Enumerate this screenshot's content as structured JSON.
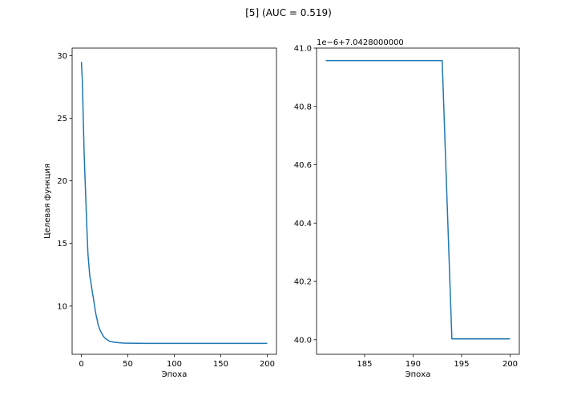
{
  "figure_title": "[5] (AUC = 0.519)",
  "colors": {
    "series": "#1f77b4"
  },
  "chart_data": [
    {
      "type": "line",
      "title": "",
      "xlabel": "Эпоха",
      "ylabel": "Целевая функция",
      "xlim": [
        -10,
        210
      ],
      "ylim": [
        6.15,
        30.6
      ],
      "xticks": [
        0,
        50,
        100,
        150,
        200
      ],
      "xtick_labels": [
        "0",
        "50",
        "100",
        "150",
        "200"
      ],
      "yticks": [
        10,
        15,
        20,
        25,
        30
      ],
      "ytick_labels": [
        "10",
        "15",
        "20",
        "25",
        "30"
      ],
      "offset_text": "",
      "grid": false,
      "series": [
        {
          "name": "",
          "x": [
            0,
            1,
            2,
            3,
            4,
            5,
            6,
            7,
            8,
            9,
            10,
            11,
            12,
            13,
            14,
            15,
            16,
            17,
            18,
            19,
            20,
            22,
            24,
            26,
            28,
            30,
            35,
            40,
            45,
            50,
            60,
            70,
            80,
            100,
            120,
            150,
            180,
            200
          ],
          "y": [
            29.5,
            28.0,
            25.0,
            22.0,
            20.0,
            18.0,
            16.0,
            14.2,
            13.3,
            12.4,
            12.0,
            11.5,
            11.0,
            10.6,
            10.1,
            9.6,
            9.2,
            8.9,
            8.5,
            8.3,
            8.1,
            7.8,
            7.55,
            7.4,
            7.3,
            7.2,
            7.12,
            7.08,
            7.05,
            7.04,
            7.03,
            7.02,
            7.02,
            7.02,
            7.02,
            7.02,
            7.02,
            7.02
          ]
        }
      ]
    },
    {
      "type": "line",
      "title": "",
      "xlabel": "Эпоха",
      "ylabel": "",
      "xlim": [
        180.05,
        200.95
      ],
      "ylim": [
        39.95,
        41.0
      ],
      "xticks": [
        185,
        190,
        195,
        200
      ],
      "xtick_labels": [
        "185",
        "190",
        "195",
        "200"
      ],
      "yticks": [
        40.0,
        40.2,
        40.4,
        40.6,
        40.8,
        41.0
      ],
      "ytick_labels": [
        "40.0",
        "40.2",
        "40.4",
        "40.6",
        "40.8",
        "41.0"
      ],
      "offset_text": "1e−6+7.0428000000",
      "grid": false,
      "series": [
        {
          "name": "",
          "x": [
            181,
            182,
            183,
            184,
            185,
            186,
            187,
            188,
            189,
            190,
            191,
            192,
            193,
            194,
            195,
            196,
            197,
            198,
            199,
            200
          ],
          "y": [
            40.957,
            40.957,
            40.957,
            40.957,
            40.957,
            40.957,
            40.957,
            40.957,
            40.957,
            40.957,
            40.957,
            40.957,
            40.957,
            40.003,
            40.003,
            40.003,
            40.003,
            40.003,
            40.003,
            40.003
          ]
        }
      ]
    }
  ]
}
